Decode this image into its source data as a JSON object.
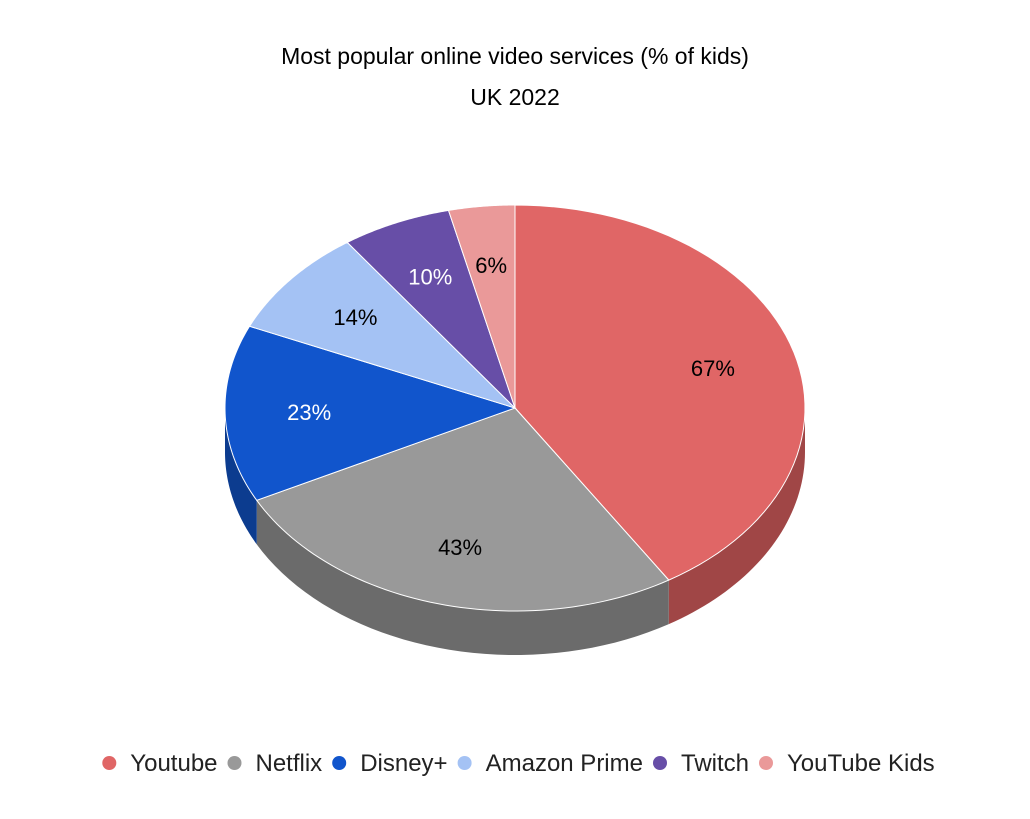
{
  "chart_data": {
    "type": "pie",
    "title": "Most popular online video services (% of kids)",
    "subtitle": "UK 2022",
    "legend_position": "bottom",
    "slices": [
      {
        "name": "Youtube",
        "value": 67,
        "label": "67%",
        "color": "#e06666",
        "side_color": "#a04646",
        "label_color": "#000000"
      },
      {
        "name": "Netflix",
        "value": 43,
        "label": "43%",
        "color": "#999999",
        "side_color": "#6b6b6b",
        "label_color": "#000000"
      },
      {
        "name": "Disney+",
        "value": 23,
        "label": "23%",
        "color": "#1155cc",
        "side_color": "#0c3c8f",
        "label_color": "#ffffff"
      },
      {
        "name": "Amazon Prime",
        "value": 14,
        "label": "14%",
        "color": "#a4c2f4",
        "side_color": "#7388ab",
        "label_color": "#000000"
      },
      {
        "name": "Twitch",
        "value": 10,
        "label": "10%",
        "color": "#674ea7",
        "side_color": "#483775",
        "label_color": "#ffffff"
      },
      {
        "name": "YouTube Kids",
        "value": 6,
        "label": "6%",
        "color": "#ea9999",
        "side_color": "#a46b6b",
        "label_color": "#000000"
      }
    ]
  }
}
